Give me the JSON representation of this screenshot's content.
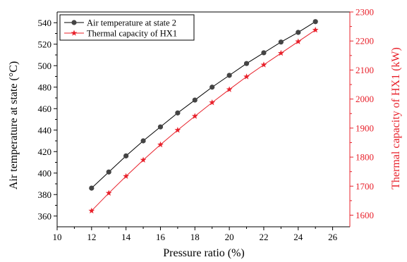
{
  "chart_data": {
    "type": "line",
    "xlabel": "Pressure ratio (%)",
    "ylabel_left": "Air temperature at state (°C)",
    "ylabel_right": "Thermal capacity of HX1 (kW)",
    "xlim": [
      10,
      27
    ],
    "ylim_left": [
      350,
      550
    ],
    "ylim_right": [
      1560,
      2300
    ],
    "x_ticks": [
      10,
      12,
      14,
      16,
      18,
      20,
      22,
      24,
      26
    ],
    "y_left_ticks": [
      360,
      380,
      400,
      420,
      440,
      460,
      480,
      500,
      520,
      540
    ],
    "y_right_ticks": [
      1600,
      1700,
      1800,
      1900,
      2000,
      2100,
      2200,
      2300
    ],
    "x": [
      12,
      13,
      14,
      15,
      16,
      17,
      18,
      19,
      20,
      21,
      22,
      23,
      24,
      25
    ],
    "series": [
      {
        "name": "Air temperature at state 2",
        "axis": "left",
        "color": "#000000",
        "marker_color": "#444444",
        "marker": "circle",
        "values": [
          386,
          401,
          416,
          430,
          443,
          456,
          468,
          480,
          491,
          502,
          512,
          522,
          531,
          541
        ]
      },
      {
        "name": "Thermal capacity of HX1",
        "axis": "right",
        "color": "#e8202a",
        "marker_color": "#e8202a",
        "marker": "star",
        "values": [
          1615,
          1676,
          1734,
          1790,
          1843,
          1893,
          1941,
          1988,
          2033,
          2077,
          2118,
          2158,
          2198,
          2238
        ]
      }
    ]
  }
}
